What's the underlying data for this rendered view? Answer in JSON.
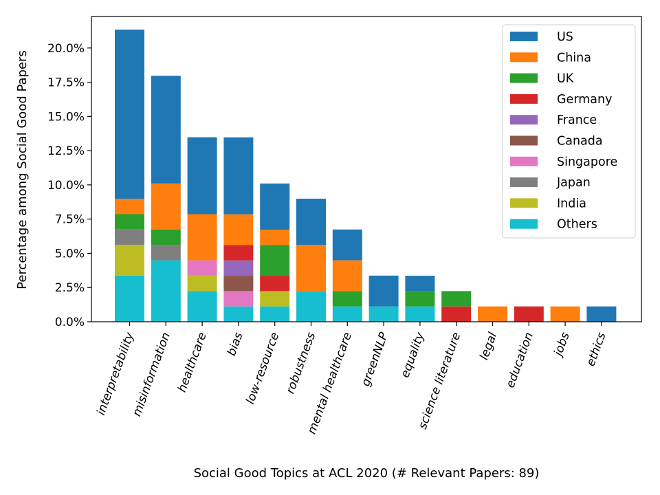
{
  "chart_data": {
    "type": "bar",
    "stacked": true,
    "title": "",
    "xlabel": "Social Good Topics at ACL 2020 (# Relevant Papers: 89)",
    "ylabel": "Percentage among Social Good Papers",
    "ylim": [
      0,
      22.3
    ],
    "yticks": [
      "0.0%",
      "2.5%",
      "5.0%",
      "7.5%",
      "10.0%",
      "12.5%",
      "15.0%",
      "17.5%",
      "20.0%"
    ],
    "grid": false,
    "legend_position": "top-right",
    "categories": [
      "interpretability",
      "misinformation",
      "healthcare",
      "bias",
      "low-resource",
      "robustness",
      "mental healthcare",
      "greenNLP",
      "equality",
      "science literature",
      "legal",
      "education",
      "jobs",
      "ethics"
    ],
    "stack_order": [
      "Others",
      "India",
      "Japan",
      "Singapore",
      "Canada",
      "France",
      "Germany",
      "UK",
      "China",
      "US"
    ],
    "series": [
      {
        "name": "US",
        "color": "#1f77b4",
        "values": [
          12.36,
          7.87,
          5.62,
          5.62,
          3.37,
          3.37,
          2.25,
          2.25,
          1.12,
          0,
          0,
          0,
          0,
          1.12
        ]
      },
      {
        "name": "China",
        "color": "#ff7f0e",
        "values": [
          1.12,
          3.37,
          3.37,
          2.25,
          1.12,
          3.37,
          2.25,
          0,
          0,
          0,
          1.12,
          0,
          1.12,
          0
        ]
      },
      {
        "name": "UK",
        "color": "#2ca02c",
        "values": [
          1.12,
          1.12,
          0,
          0,
          2.25,
          0,
          1.12,
          0,
          1.12,
          1.12,
          0,
          0,
          0,
          0
        ]
      },
      {
        "name": "Germany",
        "color": "#d62728",
        "values": [
          0,
          0,
          0,
          1.12,
          1.12,
          0,
          0,
          0,
          0,
          1.12,
          0,
          1.12,
          0,
          0
        ]
      },
      {
        "name": "France",
        "color": "#9467bd",
        "values": [
          0,
          0,
          0,
          1.12,
          0,
          0,
          0,
          0,
          0,
          0,
          0,
          0,
          0,
          0
        ]
      },
      {
        "name": "Canada",
        "color": "#8c564b",
        "values": [
          0,
          0,
          0,
          1.12,
          0,
          0,
          0,
          0,
          0,
          0,
          0,
          0,
          0,
          0
        ]
      },
      {
        "name": "Singapore",
        "color": "#e377c2",
        "values": [
          0,
          0,
          1.12,
          1.12,
          0,
          0,
          0,
          0,
          0,
          0,
          0,
          0,
          0,
          0
        ]
      },
      {
        "name": "Japan",
        "color": "#7f7f7f",
        "values": [
          1.12,
          1.12,
          0,
          0,
          0,
          0,
          0,
          0,
          0,
          0,
          0,
          0,
          0,
          0
        ]
      },
      {
        "name": "India",
        "color": "#bcbd22",
        "values": [
          2.25,
          0,
          1.12,
          0,
          1.12,
          0,
          0,
          0,
          0,
          0,
          0,
          0,
          0,
          0
        ]
      },
      {
        "name": "Others",
        "color": "#17becf",
        "values": [
          3.37,
          4.49,
          2.25,
          1.12,
          1.12,
          2.25,
          1.12,
          1.12,
          1.12,
          0,
          0,
          0,
          0,
          0
        ]
      }
    ]
  }
}
